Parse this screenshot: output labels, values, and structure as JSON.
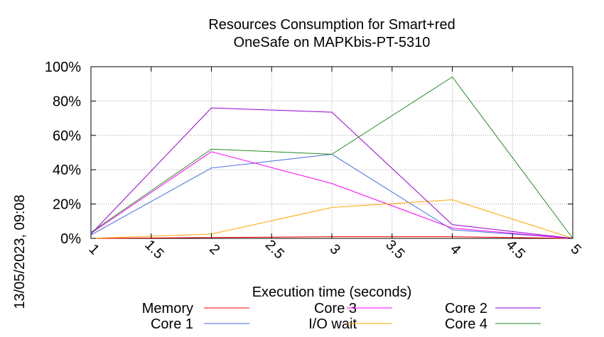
{
  "chart_data": {
    "type": "line",
    "title": [
      "Resources Consumption for Smart+red",
      "OneSafe on MAPKbis-PT-5310"
    ],
    "xlabel": "Execution time (seconds)",
    "ylabel": "",
    "side_label": "13/05/2023, 09:08",
    "xlim": [
      1,
      5
    ],
    "ylim": [
      0,
      100
    ],
    "x_ticks": [
      "1",
      "1.5",
      "2",
      "2.5",
      "3",
      "3.5",
      "4",
      "4.5",
      "5"
    ],
    "y_ticks": [
      "0%",
      "20%",
      "40%",
      "60%",
      "80%",
      "100%"
    ],
    "grid": true,
    "legend_position": "bottom",
    "x": [
      1,
      2,
      3,
      4,
      5
    ],
    "series": [
      {
        "name": "Memory",
        "color": "#ff0000",
        "values": [
          0,
          0.5,
          1,
          1,
          0
        ]
      },
      {
        "name": "Core 1",
        "color": "#4169e1",
        "values": [
          2,
          41,
          49,
          5,
          0
        ]
      },
      {
        "name": "Core 3",
        "color": "#ff00ff",
        "values": [
          3,
          50.5,
          32,
          6,
          0
        ]
      },
      {
        "name": "I/O wait",
        "color": "#ffa500",
        "values": [
          0,
          2.5,
          18,
          22.5,
          0
        ]
      },
      {
        "name": "Core 2",
        "color": "#9400d3",
        "values": [
          2.5,
          76,
          73.5,
          8,
          0
        ]
      },
      {
        "name": "Core 4",
        "color": "#228b22",
        "values": [
          3.5,
          52,
          49,
          94,
          0
        ]
      }
    ]
  }
}
